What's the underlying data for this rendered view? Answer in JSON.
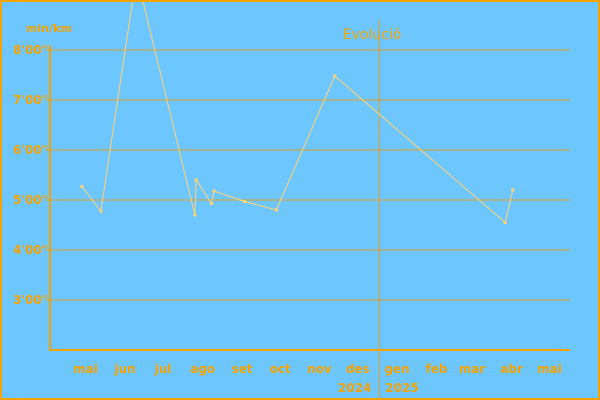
{
  "colors": {
    "background": "#6ec6ff",
    "frame": "#f5a300",
    "gridline": "#e0a020",
    "axis": "#f5a300",
    "line": "#ffd470",
    "marker": "#ffd470",
    "text": "#f5a300"
  },
  "chart_data": {
    "type": "line",
    "title": "Evolució",
    "ylabel": "min/km",
    "x_type": "date",
    "xlim": [
      "2024-04-17",
      "2025-05-31"
    ],
    "ylim": [
      2,
      8
    ],
    "y_ticks": [
      3,
      4,
      5,
      6,
      7,
      8
    ],
    "y_tick_labels": [
      "3'00\"",
      "4'00\"",
      "5'00\"",
      "6'00\"",
      "7'00\"",
      "8'00\""
    ],
    "x_ticks": [
      {
        "label": "mai",
        "date": "2024-05-15"
      },
      {
        "label": "jun",
        "date": "2024-06-15"
      },
      {
        "label": "jul",
        "date": "2024-07-15"
      },
      {
        "label": "ago",
        "date": "2024-08-15"
      },
      {
        "label": "set",
        "date": "2024-09-15"
      },
      {
        "label": "oct",
        "date": "2024-10-15"
      },
      {
        "label": "nov",
        "date": "2024-11-15"
      },
      {
        "label": "des",
        "date": "2024-12-15"
      },
      {
        "label": "gen",
        "date": "2025-01-15"
      },
      {
        "label": "feb",
        "date": "2025-02-15"
      },
      {
        "label": "mar",
        "date": "2025-03-15"
      },
      {
        "label": "abr",
        "date": "2025-04-15"
      },
      {
        "label": "mai",
        "date": "2025-05-15"
      }
    ],
    "year_divider": "2025-01-01",
    "year_labels": {
      "left": "2024",
      "right": "2025"
    },
    "grid": true,
    "series": [
      {
        "points": [
          {
            "x": "2024-05-12",
            "y": 5.27
          },
          {
            "x": "2024-05-27",
            "y": 4.78
          },
          {
            "x": "2024-06-24",
            "y": 9.5
          },
          {
            "x": "2024-08-09",
            "y": 4.7
          },
          {
            "x": "2024-08-10",
            "y": 5.4
          },
          {
            "x": "2024-08-22",
            "y": 4.93
          },
          {
            "x": "2024-08-24",
            "y": 5.18
          },
          {
            "x": "2024-09-17",
            "y": 4.97
          },
          {
            "x": "2024-10-12",
            "y": 4.8
          },
          {
            "x": "2024-11-27",
            "y": 7.48
          },
          {
            "x": "2025-04-10",
            "y": 4.55
          },
          {
            "x": "2025-04-16",
            "y": 5.2
          }
        ]
      }
    ]
  }
}
